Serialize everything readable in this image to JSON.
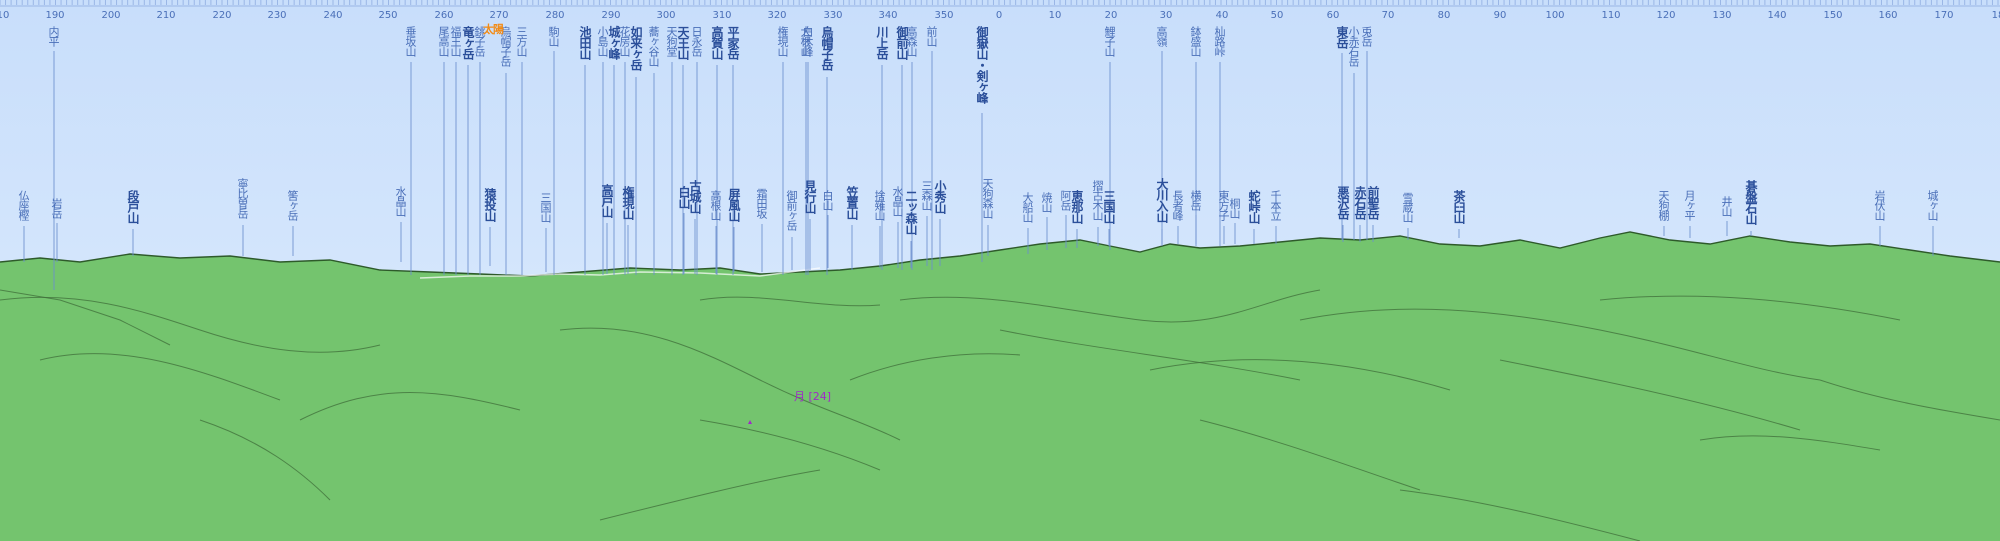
{
  "colors": {
    "sky": "#cfe2fb",
    "ground": "#74c46e",
    "ridge": "#3f6e3a",
    "leader": "#6c8fcf",
    "label": "#4a6fb8",
    "sun": "#f28a14",
    "moon": "#a02ac8"
  },
  "bearing_ticks": [
    "10",
    "190",
    "200",
    "210",
    "220",
    "230",
    "240",
    "250",
    "260",
    "270",
    "280",
    "290",
    "300",
    "310",
    "320",
    "330",
    "340",
    "350",
    "0",
    "10",
    "20",
    "30",
    "40",
    "50",
    "60",
    "70",
    "80",
    "90",
    "100",
    "110",
    "120",
    "130",
    "140",
    "150",
    "160",
    "170",
    "18"
  ],
  "peaks_high": [
    {
      "name": "内平",
      "bold": false
    },
    {
      "name": "垂坂山",
      "bold": false
    },
    {
      "name": "尾高山",
      "bold": false
    },
    {
      "name": "福王山",
      "bold": false
    },
    {
      "name": "竜ヶ岳",
      "bold": true
    },
    {
      "name": "銚子岳",
      "bold": false
    },
    {
      "name": "烏帽子岳",
      "bold": false
    },
    {
      "name": "三方山",
      "bold": false
    },
    {
      "name": "駒山",
      "bold": false
    },
    {
      "name": "池田山",
      "bold": true
    },
    {
      "name": "小島山",
      "bold": false
    },
    {
      "name": "城ヶ峰",
      "bold": true
    },
    {
      "name": "花房山",
      "bold": false
    },
    {
      "name": "如来ヶ岳",
      "bold": true
    },
    {
      "name": "蕎ヶ谷山",
      "bold": false
    },
    {
      "name": "天狗堂",
      "bold": false
    },
    {
      "name": "天王山",
      "bold": true
    },
    {
      "name": "日永岳",
      "bold": false
    },
    {
      "name": "高賀山",
      "bold": true
    },
    {
      "name": "平家岳",
      "bold": true
    },
    {
      "name": "権現山",
      "bold": false
    },
    {
      "name": "大根山",
      "bold": false
    },
    {
      "name": "白木峰",
      "bold": false
    },
    {
      "name": "烏帽子岳",
      "bold": true
    },
    {
      "name": "川上岳",
      "bold": true
    },
    {
      "name": "御前山",
      "bold": true
    },
    {
      "name": "高森山",
      "bold": false
    },
    {
      "name": "前山",
      "bold": false
    },
    {
      "name": "御嶽山・剣ヶ峰",
      "bold": true
    },
    {
      "name": "鯉子山",
      "bold": false
    },
    {
      "name": "高嶺",
      "bold": false
    },
    {
      "name": "鉢盛山",
      "bold": false
    },
    {
      "name": "杣路峠",
      "bold": false
    },
    {
      "name": "東岳",
      "bold": true
    },
    {
      "name": "小赤石岳",
      "bold": false
    },
    {
      "name": "兎岳",
      "bold": false
    }
  ],
  "peaks_low": [
    {
      "name": "仏座樫",
      "bold": false
    },
    {
      "name": "岩岳",
      "bold": false
    },
    {
      "name": "段戸山",
      "bold": true
    },
    {
      "name": "寧比曽岳",
      "bold": false
    },
    {
      "name": "筈ヶ岳",
      "bold": false
    },
    {
      "name": "水晶山",
      "bold": false
    },
    {
      "name": "猿投山",
      "bold": true
    },
    {
      "name": "三国山",
      "bold": false
    },
    {
      "name": "高戸山",
      "bold": true
    },
    {
      "name": "権現山",
      "bold": true
    },
    {
      "name": "白山",
      "bold": true
    },
    {
      "name": "古城山",
      "bold": true
    },
    {
      "name": "高根山",
      "bold": false
    },
    {
      "name": "屏風山",
      "bold": true
    },
    {
      "name": "霜田坂",
      "bold": false
    },
    {
      "name": "御前ヶ岳",
      "bold": false
    },
    {
      "name": "見行山",
      "bold": true
    },
    {
      "name": "白山",
      "bold": false
    },
    {
      "name": "笠置山",
      "bold": true
    },
    {
      "name": "捨薙山",
      "bold": false
    },
    {
      "name": "水晶山",
      "bold": false
    },
    {
      "name": "二ッ森山",
      "bold": true
    },
    {
      "name": "三森山",
      "bold": false
    },
    {
      "name": "小秀山",
      "bold": true
    },
    {
      "name": "天狗森山",
      "bold": false
    },
    {
      "name": "大船山",
      "bold": false
    },
    {
      "name": "焼山",
      "bold": false
    },
    {
      "name": "阿岳",
      "bold": false
    },
    {
      "name": "恵那山",
      "bold": true
    },
    {
      "name": "摺古木山",
      "bold": false
    },
    {
      "name": "三国山",
      "bold": true
    },
    {
      "name": "大川入山",
      "bold": true
    },
    {
      "name": "長者峰",
      "bold": false
    },
    {
      "name": "横岳",
      "bold": false
    },
    {
      "name": "東方子",
      "bold": false
    },
    {
      "name": "桐山",
      "bold": false
    },
    {
      "name": "蛇峠山",
      "bold": true
    },
    {
      "name": "千本立",
      "bold": false
    },
    {
      "name": "悪沢岳",
      "bold": true
    },
    {
      "name": "赤石岳",
      "bold": true
    },
    {
      "name": "前聖岳",
      "bold": true
    },
    {
      "name": "雪蔵山",
      "bold": false
    },
    {
      "name": "茶臼山",
      "bold": true
    },
    {
      "name": "天狗棚",
      "bold": false
    },
    {
      "name": "月ヶ平",
      "bold": false
    },
    {
      "name": "井山",
      "bold": false
    },
    {
      "name": "碁盤石山",
      "bold": true
    },
    {
      "name": "岩伏山",
      "bold": false
    },
    {
      "name": "城ヶ山",
      "bold": false
    }
  ],
  "sun_label": "太陽",
  "moon_label": "月 [24]"
}
